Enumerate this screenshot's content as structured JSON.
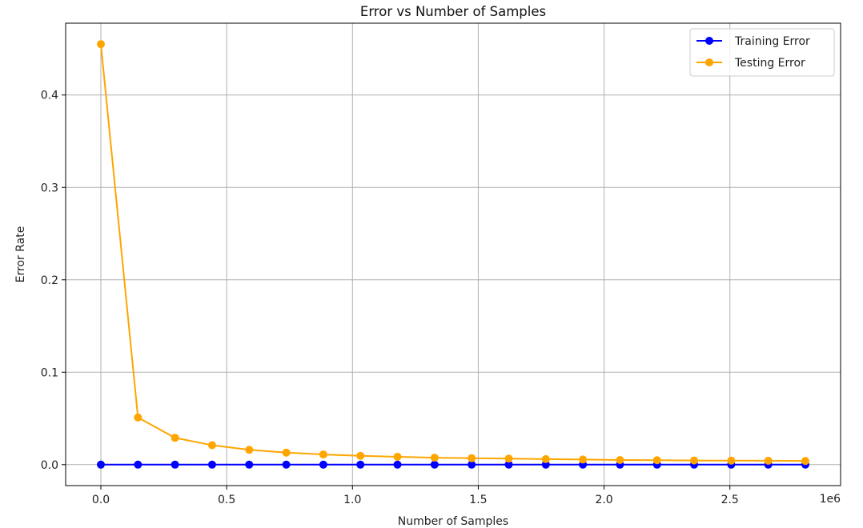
{
  "chart_data": {
    "type": "line",
    "title": "Error vs Number of Samples",
    "xlabel": "Number of Samples",
    "ylabel": "Error Rate",
    "x_offset_label": "1e6",
    "xlim": [
      -0.14,
      2.94
    ],
    "ylim": [
      -0.0227,
      0.4777
    ],
    "x_ticks": [
      0.0,
      0.5,
      1.0,
      1.5,
      2.0,
      2.5
    ],
    "x_tick_labels": [
      "0.0",
      "0.5",
      "1.0",
      "1.5",
      "2.0",
      "2.5"
    ],
    "y_ticks": [
      0.0,
      0.1,
      0.2,
      0.3,
      0.4
    ],
    "y_tick_labels": [
      "0.0",
      "0.1",
      "0.2",
      "0.3",
      "0.4"
    ],
    "grid": true,
    "legend_position": "top-right",
    "x": [
      0.0,
      0.1474,
      0.2947,
      0.4421,
      0.5895,
      0.7368,
      0.8842,
      1.0316,
      1.1789,
      1.3263,
      1.4737,
      1.6211,
      1.7684,
      1.9158,
      2.0632,
      2.2105,
      2.3579,
      2.5053,
      2.6526,
      2.8
    ],
    "series": [
      {
        "name": "Training Error",
        "color": "#0000ff",
        "values": [
          0.0,
          0.0,
          0.0,
          0.0,
          0.0,
          0.0,
          0.0,
          0.0,
          0.0,
          0.0,
          0.0,
          0.0,
          0.0,
          0.0,
          0.0,
          0.0,
          0.0,
          0.0,
          0.0,
          0.0
        ]
      },
      {
        "name": "Testing Error",
        "color": "#ffa500",
        "values": [
          0.455,
          0.051,
          0.029,
          0.021,
          0.016,
          0.013,
          0.011,
          0.0095,
          0.0085,
          0.0075,
          0.007,
          0.0065,
          0.006,
          0.0055,
          0.005,
          0.0048,
          0.0045,
          0.0043,
          0.0042,
          0.004
        ]
      }
    ]
  }
}
